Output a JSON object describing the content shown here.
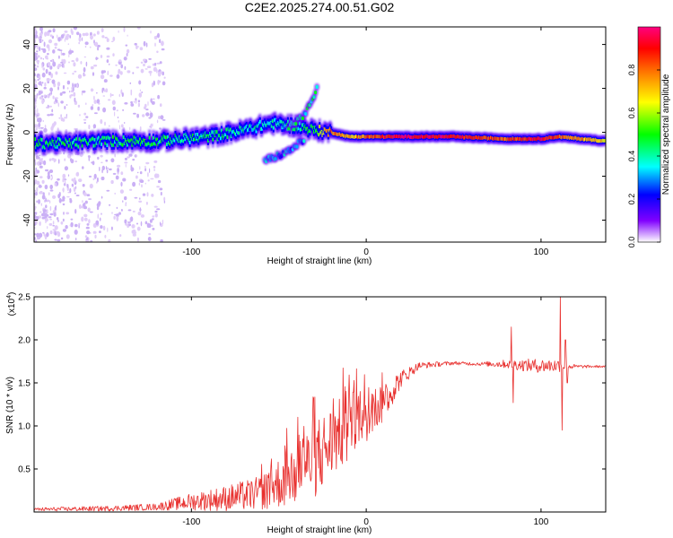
{
  "title": "C2E2.2025.274.00.51.G02",
  "chart_data": [
    {
      "type": "heatmap",
      "name": "spectrogram",
      "xlabel": "Height of straight line (km)",
      "ylabel": "Frequency (Hz)",
      "xlim": [
        -190,
        137
      ],
      "ylim": [
        -50,
        48
      ],
      "xticks": [
        -100,
        0,
        100
      ],
      "yticks": [
        -40,
        -20,
        0,
        20,
        40
      ],
      "colorbar": {
        "label": "Normalized spectral amplitude",
        "range": [
          0,
          1
        ],
        "ticks": [
          "0.0",
          "0.2",
          "0.4",
          "0.6",
          "0.8"
        ],
        "colors": [
          "#ffffff",
          "#8000ff",
          "#0000ff",
          "#00ffff",
          "#00ff00",
          "#ffff00",
          "#ff8000",
          "#ff0000",
          "#ff0080"
        ]
      },
      "ridge": [
        {
          "x": -190,
          "y": -5,
          "amp": 0.45
        },
        {
          "x": -170,
          "y": -5,
          "amp": 0.45
        },
        {
          "x": -150,
          "y": -4,
          "amp": 0.45
        },
        {
          "x": -120,
          "y": -4,
          "amp": 0.45
        },
        {
          "x": -90,
          "y": -2,
          "amp": 0.42
        },
        {
          "x": -70,
          "y": 1,
          "amp": 0.4
        },
        {
          "x": -55,
          "y": 4,
          "amp": 0.38
        },
        {
          "x": -40,
          "y": 3,
          "amp": 0.4
        },
        {
          "x": -30,
          "y": 1,
          "amp": 0.5
        },
        {
          "x": -20,
          "y": 0,
          "amp": 0.8
        },
        {
          "x": -10,
          "y": -2,
          "amp": 0.7
        },
        {
          "x": 0,
          "y": -2,
          "amp": 0.8
        },
        {
          "x": 20,
          "y": -2,
          "amp": 0.95
        },
        {
          "x": 50,
          "y": -2,
          "amp": 0.92
        },
        {
          "x": 80,
          "y": -3,
          "amp": 0.8
        },
        {
          "x": 100,
          "y": -3,
          "amp": 0.95
        },
        {
          "x": 110,
          "y": -2,
          "amp": 0.8
        },
        {
          "x": 137,
          "y": -4,
          "amp": 0.7
        }
      ],
      "branches": [
        {
          "points": [
            {
              "x": -45,
              "y": 2
            },
            {
              "x": -35,
              "y": 8
            },
            {
              "x": -28,
              "y": 20
            }
          ],
          "amp": 0.4
        },
        {
          "points": [
            {
              "x": -58,
              "y": -13
            },
            {
              "x": -45,
              "y": -9
            },
            {
              "x": -35,
              "y": -3
            }
          ],
          "amp": 0.3
        }
      ]
    },
    {
      "type": "line",
      "name": "snr",
      "xlabel": "Height of straight line (km)",
      "ylabel": "SNR (10 * v/v)",
      "scale_label": "(x10",
      "scale_exponent": "4",
      "xlim": [
        -190,
        137
      ],
      "ylim": [
        0,
        2.5
      ],
      "xticks": [
        -100,
        0,
        100
      ],
      "yticks": [
        "0.5",
        "1.0",
        "1.5",
        "2.0",
        "2.5"
      ],
      "color": "#e8302e",
      "trend": [
        {
          "x": -190,
          "y": 0.03,
          "noise": 0.02
        },
        {
          "x": -150,
          "y": 0.04,
          "noise": 0.03
        },
        {
          "x": -120,
          "y": 0.06,
          "noise": 0.04
        },
        {
          "x": -100,
          "y": 0.12,
          "noise": 0.1
        },
        {
          "x": -80,
          "y": 0.16,
          "noise": 0.15
        },
        {
          "x": -60,
          "y": 0.22,
          "noise": 0.2
        },
        {
          "x": -45,
          "y": 0.4,
          "noise": 0.35
        },
        {
          "x": -30,
          "y": 0.6,
          "noise": 0.45
        },
        {
          "x": -20,
          "y": 0.8,
          "noise": 0.45
        },
        {
          "x": -10,
          "y": 1.0,
          "noise": 0.4
        },
        {
          "x": 0,
          "y": 1.1,
          "noise": 0.3
        },
        {
          "x": 10,
          "y": 1.3,
          "noise": 0.25
        },
        {
          "x": 20,
          "y": 1.55,
          "noise": 0.1
        },
        {
          "x": 30,
          "y": 1.7,
          "noise": 0.04
        },
        {
          "x": 50,
          "y": 1.73,
          "noise": 0.02
        },
        {
          "x": 65,
          "y": 1.72,
          "noise": 0.02
        },
        {
          "x": 80,
          "y": 1.72,
          "noise": 0.05
        },
        {
          "x": 95,
          "y": 1.7,
          "noise": 0.08
        },
        {
          "x": 110,
          "y": 1.7,
          "noise": 0.08
        },
        {
          "x": 120,
          "y": 1.69,
          "noise": 0.02
        },
        {
          "x": 137,
          "y": 1.69,
          "noise": 0.01
        }
      ],
      "spikes": [
        {
          "x": 83,
          "y": 2.15
        },
        {
          "x": 84,
          "y": 1.27
        },
        {
          "x": 111,
          "y": 2.5
        },
        {
          "x": 112,
          "y": 0.95
        },
        {
          "x": 114,
          "y": 2.0
        },
        {
          "x": 115,
          "y": 1.5
        }
      ]
    }
  ]
}
